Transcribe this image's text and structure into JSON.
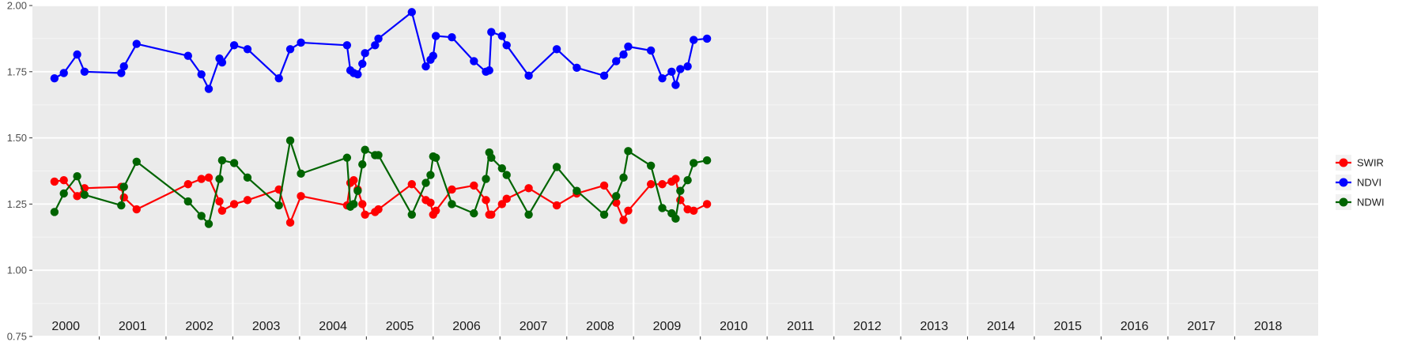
{
  "chart_data": {
    "type": "line",
    "title": "",
    "xlabel": "",
    "ylabel": "",
    "ylim": [
      0.75,
      2.0
    ],
    "y_ticks": [
      "0.75",
      "1.00",
      "1.25",
      "1.50",
      "1.75",
      "2.00"
    ],
    "xlim": [
      2000.0,
      2019.25
    ],
    "year_labels": [
      "2000",
      "2001",
      "2002",
      "2003",
      "2004",
      "2005",
      "2006",
      "2007",
      "2008",
      "2009",
      "2010",
      "2011",
      "2012",
      "2013",
      "2014",
      "2015",
      "2016",
      "2017",
      "2018"
    ],
    "grid": true,
    "legend_position": "right",
    "series": [
      {
        "name": "SWIR",
        "color": "#ff0000",
        "x": [
          2000.33,
          2000.47,
          2000.67,
          2000.78,
          2001.33,
          2001.37,
          2001.56,
          2002.33,
          2002.53,
          2002.64,
          2002.8,
          2002.84,
          2003.02,
          2003.22,
          2003.69,
          2003.86,
          2004.02,
          2004.71,
          2004.76,
          2004.81,
          2004.87,
          2004.94,
          2004.98,
          2005.13,
          2005.18,
          2005.68,
          2005.89,
          2005.96,
          2006.0,
          2006.04,
          2006.28,
          2006.61,
          2006.79,
          2006.84,
          2006.87,
          2007.03,
          2007.1,
          2007.43,
          2007.85,
          2008.15,
          2008.56,
          2008.74,
          2008.85,
          2008.92,
          2009.26,
          2009.43,
          2009.57,
          2009.63,
          2009.7,
          2009.81,
          2009.9,
          2010.1
        ],
        "y": [
          1.335,
          1.34,
          1.28,
          1.31,
          1.315,
          1.275,
          1.23,
          1.325,
          1.345,
          1.35,
          1.26,
          1.225,
          1.25,
          1.265,
          1.305,
          1.18,
          1.28,
          1.245,
          1.33,
          1.34,
          1.305,
          1.25,
          1.21,
          1.22,
          1.23,
          1.325,
          1.265,
          1.255,
          1.21,
          1.225,
          1.305,
          1.32,
          1.265,
          1.21,
          1.21,
          1.25,
          1.27,
          1.31,
          1.245,
          1.29,
          1.32,
          1.255,
          1.19,
          1.225,
          1.325,
          1.325,
          1.335,
          1.345,
          1.265,
          1.23,
          1.225,
          1.25
        ]
      },
      {
        "name": "NDVI",
        "color": "#0000ff",
        "x": [
          2000.33,
          2000.47,
          2000.67,
          2000.78,
          2001.33,
          2001.37,
          2001.56,
          2002.33,
          2002.53,
          2002.64,
          2002.8,
          2002.84,
          2003.02,
          2003.22,
          2003.69,
          2003.86,
          2004.02,
          2004.71,
          2004.76,
          2004.81,
          2004.87,
          2004.94,
          2004.98,
          2005.13,
          2005.18,
          2005.68,
          2005.89,
          2005.96,
          2006.0,
          2006.04,
          2006.28,
          2006.61,
          2006.79,
          2006.84,
          2006.87,
          2007.03,
          2007.1,
          2007.43,
          2007.85,
          2008.15,
          2008.56,
          2008.74,
          2008.85,
          2008.92,
          2009.26,
          2009.43,
          2009.57,
          2009.63,
          2009.7,
          2009.81,
          2009.9,
          2010.1
        ],
        "y": [
          1.725,
          1.745,
          1.815,
          1.75,
          1.745,
          1.77,
          1.855,
          1.81,
          1.74,
          1.685,
          1.8,
          1.785,
          1.85,
          1.835,
          1.725,
          1.835,
          1.86,
          1.85,
          1.755,
          1.745,
          1.74,
          1.78,
          1.82,
          1.85,
          1.875,
          1.975,
          1.77,
          1.795,
          1.81,
          1.885,
          1.88,
          1.79,
          1.75,
          1.755,
          1.9,
          1.885,
          1.85,
          1.735,
          1.835,
          1.765,
          1.735,
          1.79,
          1.815,
          1.845,
          1.83,
          1.725,
          1.75,
          1.7,
          1.76,
          1.77,
          1.87,
          1.875
        ]
      },
      {
        "name": "NDWI",
        "color": "#006400",
        "x": [
          2000.33,
          2000.47,
          2000.67,
          2000.78,
          2001.33,
          2001.37,
          2001.56,
          2002.33,
          2002.53,
          2002.64,
          2002.8,
          2002.84,
          2003.02,
          2003.22,
          2003.69,
          2003.86,
          2004.02,
          2004.71,
          2004.76,
          2004.81,
          2004.87,
          2004.94,
          2004.98,
          2005.13,
          2005.18,
          2005.68,
          2005.89,
          2005.96,
          2006.0,
          2006.04,
          2006.28,
          2006.61,
          2006.79,
          2006.84,
          2006.87,
          2007.03,
          2007.1,
          2007.43,
          2007.85,
          2008.15,
          2008.56,
          2008.74,
          2008.85,
          2008.92,
          2009.26,
          2009.43,
          2009.57,
          2009.63,
          2009.7,
          2009.81,
          2009.9,
          2010.1
        ],
        "y": [
          1.22,
          1.29,
          1.355,
          1.285,
          1.245,
          1.315,
          1.41,
          1.26,
          1.205,
          1.175,
          1.345,
          1.415,
          1.405,
          1.35,
          1.245,
          1.49,
          1.365,
          1.425,
          1.24,
          1.25,
          1.3,
          1.4,
          1.455,
          1.435,
          1.435,
          1.21,
          1.33,
          1.36,
          1.43,
          1.425,
          1.25,
          1.215,
          1.345,
          1.445,
          1.425,
          1.385,
          1.36,
          1.21,
          1.39,
          1.3,
          1.21,
          1.28,
          1.35,
          1.45,
          1.395,
          1.235,
          1.215,
          1.195,
          1.3,
          1.34,
          1.405,
          1.415
        ]
      }
    ]
  }
}
